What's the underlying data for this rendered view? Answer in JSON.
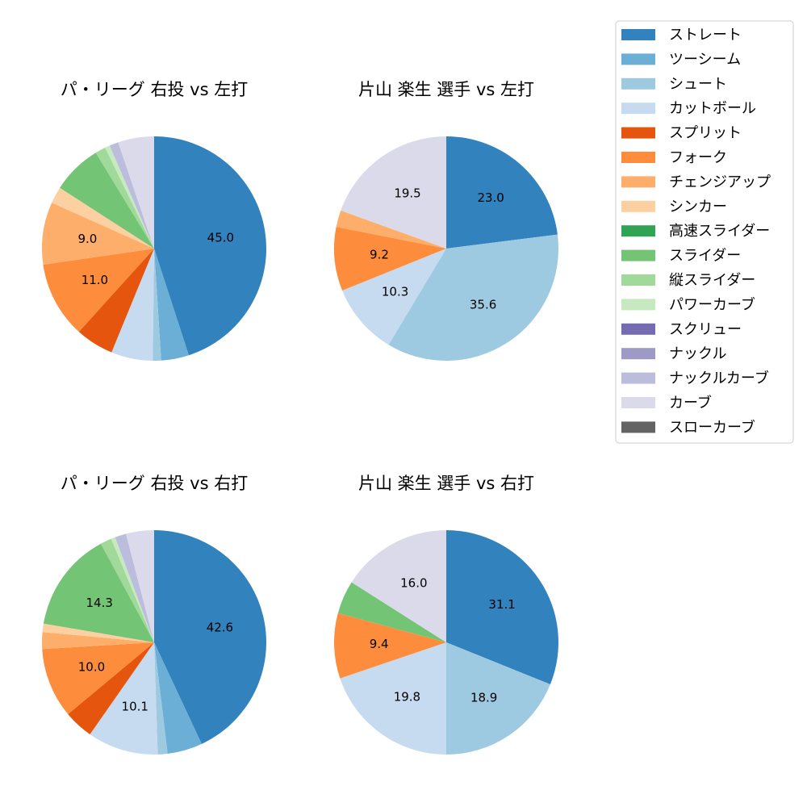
{
  "legend": {
    "placement": "top-right",
    "items": [
      {
        "label": "ストレート",
        "color": "#3182bd"
      },
      {
        "label": "ツーシーム",
        "color": "#6baed6"
      },
      {
        "label": "シュート",
        "color": "#9ecae1"
      },
      {
        "label": "カットボール",
        "color": "#c6dbef"
      },
      {
        "label": "スプリット",
        "color": "#e6550d"
      },
      {
        "label": "フォーク",
        "color": "#fd8d3c"
      },
      {
        "label": "チェンジアップ",
        "color": "#fdae6b"
      },
      {
        "label": "シンカー",
        "color": "#fdd0a2"
      },
      {
        "label": "高速スライダー",
        "color": "#31a354"
      },
      {
        "label": "スライダー",
        "color": "#74c476"
      },
      {
        "label": "縦スライダー",
        "color": "#a1d99b"
      },
      {
        "label": "パワーカーブ",
        "color": "#c7e9c0"
      },
      {
        "label": "スクリュー",
        "color": "#756bb1"
      },
      {
        "label": "ナックル",
        "color": "#9e9ac8"
      },
      {
        "label": "ナックルカーブ",
        "color": "#bcbddc"
      },
      {
        "label": "カーブ",
        "color": "#dadaeb"
      },
      {
        "label": "スローカーブ",
        "color": "#636363"
      }
    ]
  },
  "chart_data": [
    {
      "type": "pie",
      "title": "パ・リーグ 右投 vs 左打",
      "labels": [
        "ストレート",
        "ツーシーム",
        "シュート",
        "カットボール",
        "スプリット",
        "フォーク",
        "チェンジアップ",
        "シンカー",
        "スライダー",
        "縦スライダー",
        "パワーカーブ",
        "ナックルカーブ",
        "カーブ"
      ],
      "values": [
        45.0,
        4.0,
        1.2,
        6.0,
        5.5,
        11.0,
        9.0,
        2.4,
        7.2,
        1.5,
        0.7,
        1.3,
        5.2
      ],
      "display_labels": [
        "45.0",
        "",
        "",
        "",
        "",
        "11.0",
        "9.0",
        "",
        "",
        "",
        "",
        "",
        ""
      ]
    },
    {
      "type": "pie",
      "title": "片山 楽生 選手 vs 左打",
      "labels": [
        "ストレート",
        "シュート",
        "カットボール",
        "フォーク",
        "チェンジアップ",
        "カーブ"
      ],
      "values": [
        23.0,
        35.6,
        10.3,
        9.2,
        2.4,
        19.5
      ],
      "display_labels": [
        "23.0",
        "35.6",
        "10.3",
        "9.2",
        "",
        "19.5"
      ]
    },
    {
      "type": "pie",
      "title": "パ・リーグ 右投 vs 右打",
      "labels": [
        "ストレート",
        "ツーシーム",
        "シュート",
        "カットボール",
        "スプリット",
        "フォーク",
        "チェンジアップ",
        "シンカー",
        "スライダー",
        "縦スライダー",
        "パワーカーブ",
        "ナックルカーブ",
        "カーブ"
      ],
      "values": [
        42.6,
        5.0,
        1.4,
        10.1,
        4.2,
        10.0,
        2.4,
        1.2,
        14.3,
        1.6,
        0.6,
        1.6,
        4.0
      ],
      "display_labels": [
        "42.6",
        "",
        "",
        "10.1",
        "",
        "10.0",
        "",
        "",
        "14.3",
        "",
        "",
        "",
        ""
      ]
    },
    {
      "type": "pie",
      "title": "片山 楽生 選手 vs 右打",
      "labels": [
        "ストレート",
        "シュート",
        "カットボール",
        "フォーク",
        "スライダー",
        "カーブ"
      ],
      "values": [
        31.1,
        18.9,
        19.8,
        9.4,
        4.8,
        16.0
      ],
      "display_labels": [
        "31.1",
        "18.9",
        "19.8",
        "9.4",
        "",
        "16.0"
      ]
    }
  ]
}
